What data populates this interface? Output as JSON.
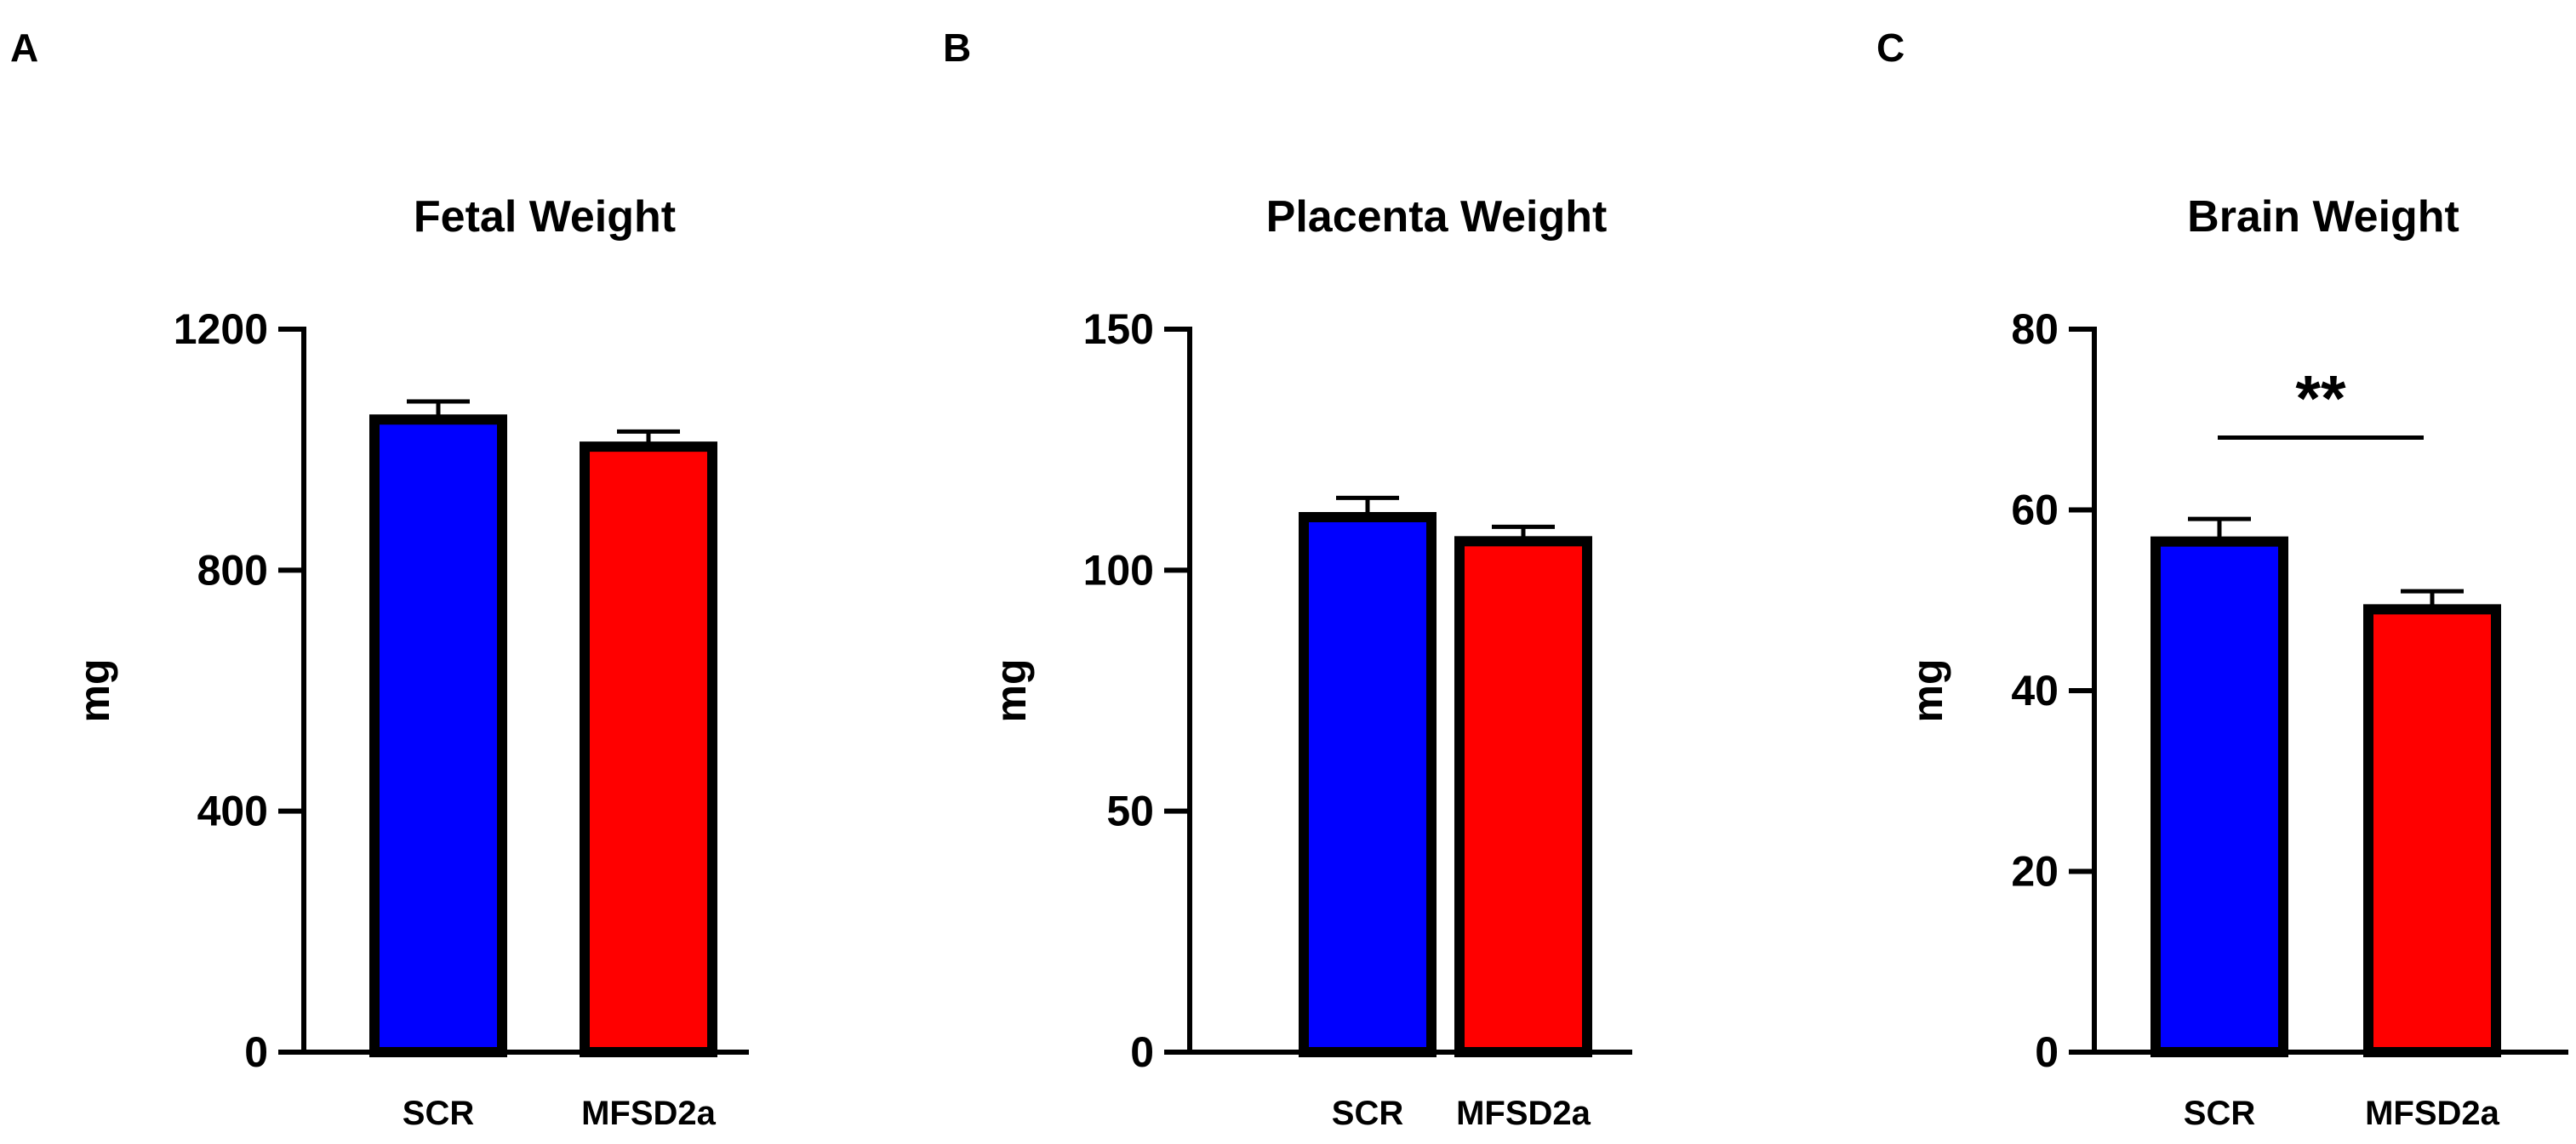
{
  "colors": {
    "scr": "#0000ff",
    "mfsd2a": "#ff0000",
    "axis": "#000000"
  },
  "chart_data": [
    {
      "panel": "A",
      "type": "bar",
      "title": "Fetal Weight",
      "ylabel": "mg",
      "xlabel": "",
      "categories": [
        "SCR",
        "MFSD2a"
      ],
      "values": [
        1050,
        1005
      ],
      "errors": [
        30,
        25
      ],
      "ylim": [
        0,
        1200
      ],
      "yticks": [
        0,
        400,
        800,
        1200
      ],
      "significance": null
    },
    {
      "panel": "B",
      "type": "bar",
      "title": "Placenta Weight",
      "ylabel": "mg",
      "xlabel": "",
      "categories": [
        "SCR",
        "MFSD2a"
      ],
      "values": [
        111,
        106
      ],
      "errors": [
        4,
        3
      ],
      "ylim": [
        0,
        150
      ],
      "yticks": [
        0,
        50,
        100,
        150
      ],
      "significance": null
    },
    {
      "panel": "C",
      "type": "bar",
      "title": "Brain Weight",
      "ylabel": "mg",
      "xlabel": "",
      "categories": [
        "SCR",
        "MFSD2a"
      ],
      "values": [
        56.5,
        49
      ],
      "errors": [
        2.5,
        2
      ],
      "ylim": [
        0,
        80
      ],
      "yticks": [
        0,
        20,
        40,
        60,
        80
      ],
      "significance": {
        "label": "**",
        "pair": [
          "SCR",
          "MFSD2a"
        ],
        "level": 68
      }
    }
  ]
}
